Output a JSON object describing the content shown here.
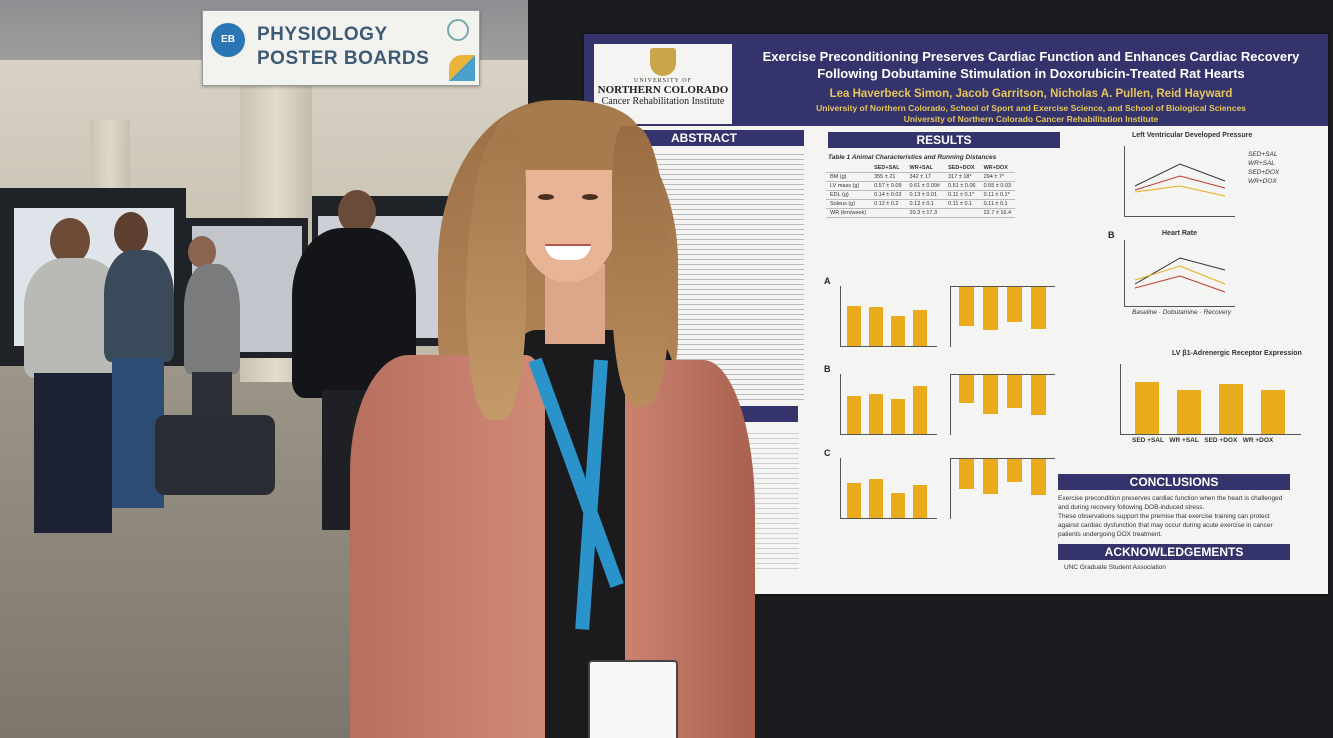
{
  "sign": {
    "logo_text": "EB",
    "line1": "PHYSIOLOGY",
    "line2": "POSTER BOARDS"
  },
  "poster": {
    "university_small": "UNIVERSITY OF",
    "university_name": "NORTHERN COLORADO",
    "institute": "Cancer Rehabilitation Institute",
    "title_line1": "Exercise Preconditioning Preserves Cardiac Function and Enhances Cardiac Recovery",
    "title_line2": "Following Dobutamine Stimulation in Doxorubicin-Treated Rat Hearts",
    "authors": "Lea Haverbeck Simon, Jacob Garritson, Nicholas A. Pullen, Reid Hayward",
    "affiliation1": "University of Northern Colorado, School of Sport and Exercise Science, and School of Biological Sciences",
    "affiliation2": "University of Northern Colorado Cancer Rehabilitation Institute",
    "sections": {
      "abstract": "ABSTRACT",
      "methods": "METHODS",
      "results": "RESULTS",
      "conclusions": "CONCLUSIONS",
      "acknowledgements": "ACKNOWLEDGEMENTS"
    },
    "table_caption": "Table 1 Animal Characteristics and Running Distances",
    "table_headers": [
      "",
      "SED+SAL",
      "WR+SAL",
      "SED+DOX",
      "WR+DOX"
    ],
    "table_rows": [
      [
        "BM (g)",
        "355 ± 21",
        "342 ± 17",
        "317 ± 18*",
        "294 ± 7*"
      ],
      [
        "LV mass (g)",
        "0.57 ± 0.09",
        "0.61 ± 0.09#",
        "0.51 ± 0.06",
        "0.55 ± 0.03"
      ],
      [
        "EDL (g)",
        "0.14 ± 0.02",
        "0.13 ± 0.01",
        "0.11 ± 0.1*",
        "0.11 ± 0.1*"
      ],
      [
        "Soleus (g)",
        "0.12 ± 0.2",
        "0.12 ± 0.1",
        "0.11 ± 0.1",
        "0.11 ± 0.1"
      ],
      [
        "WR (km/week)",
        "",
        "20.3 ± 17.3",
        "",
        "22.7 ± 16.4"
      ]
    ],
    "fig_lvdp_title": "Left Ventricular Developed Pressure",
    "fig_hr_title": "Heart Rate",
    "fig_receptor_title": "LV β1-Adrenergic Receptor Expression",
    "x_labels": [
      "Baseline",
      "Dobutamine",
      "Recovery"
    ],
    "legend": [
      "SED+SAL",
      "WR+SAL",
      "SED+DOX",
      "WR+DOX"
    ],
    "receptor_categories": [
      "SED +SAL",
      "WR +SAL",
      "SED +DOX",
      "WR +DOX"
    ],
    "conclusion1": "Exercise precondition preserves cardiac function when the heart is challenged and during recovery following DOB-induced stress.",
    "conclusion2": "These observations support the premise that exercise training can protect against cardiac dysfunction that may occur during acute exercise in cancer patients undergoing DOX treatment.",
    "acknowledgement": "UNC Graduate Student Association",
    "panel_labels": [
      "A",
      "B",
      "C"
    ]
  },
  "colors": {
    "poster_header": "#34336b",
    "title_gold": "#e6c65a",
    "bar_gold": "#e9ac1c",
    "lanyard_blue": "#2a93c9",
    "jacket": "#c27b68"
  }
}
